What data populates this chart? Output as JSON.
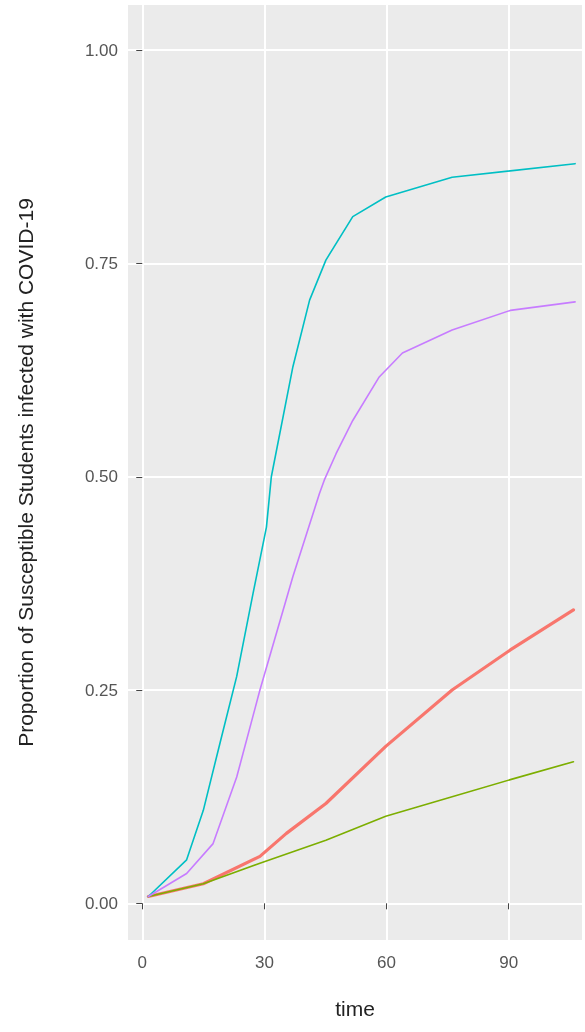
{
  "chart_data": {
    "type": "line",
    "xlabel": "time",
    "ylabel": "Proportion of Susceptible Students infected with COVID-19",
    "xlim": [
      -3.5,
      108
    ],
    "ylim": [
      -0.043,
      1.053
    ],
    "xticks": [
      0,
      30,
      60,
      90
    ],
    "yticks": [
      {
        "value": 0,
        "label": "0.00"
      },
      {
        "value": 0.25,
        "label": "0.25"
      },
      {
        "value": 0.5,
        "label": "0.50"
      },
      {
        "value": 0.75,
        "label": "0.75"
      },
      {
        "value": 1,
        "label": "1.00"
      }
    ],
    "grid": true,
    "marker": "none",
    "line_style": "solid",
    "series": [
      {
        "color": "#f8766d",
        "x": [
          1.5,
          15,
          28.9,
          35.4,
          45.1,
          59.8,
          76.1,
          90.4,
          105.9
        ],
        "values": [
          0.008,
          0.023,
          0.055,
          0.082,
          0.117,
          0.184,
          0.25,
          0.297,
          0.344
        ]
      },
      {
        "color": "#7cae00",
        "x": [
          1.5,
          15,
          28.9,
          45.1,
          59.8,
          76.1,
          90.4,
          105.9
        ],
        "values": [
          0.008,
          0.023,
          0.047,
          0.074,
          0.102,
          0.125,
          0.145,
          0.166
        ]
      },
      {
        "color": "#00bfc4",
        "x": [
          1.5,
          10.9,
          15,
          19.1,
          23.2,
          27.2,
          30.5,
          31.7,
          37,
          41.1,
          45.1,
          51.7,
          59.8,
          76.1,
          106.3
        ],
        "values": [
          0.008,
          0.051,
          0.109,
          0.188,
          0.266,
          0.363,
          0.441,
          0.5,
          0.629,
          0.707,
          0.754,
          0.805,
          0.828,
          0.851,
          0.867
        ]
      },
      {
        "color": "#c77cff",
        "x": [
          1.5,
          10.9,
          17.4,
          23.2,
          28.9,
          37,
          43.5,
          44.7,
          47.6,
          51.7,
          58.2,
          63.9,
          76.1,
          90.4,
          106.3
        ],
        "values": [
          0.008,
          0.035,
          0.07,
          0.148,
          0.25,
          0.383,
          0.48,
          0.496,
          0.527,
          0.566,
          0.617,
          0.645,
          0.672,
          0.695,
          0.705
        ]
      }
    ]
  }
}
